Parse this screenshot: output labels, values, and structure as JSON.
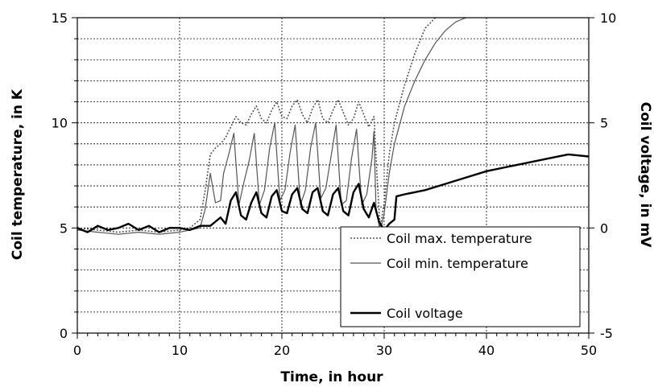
{
  "chart_data": {
    "type": "line",
    "title": "",
    "xlabel": "Time, in hour",
    "ylabel": "Coil temperature, in K",
    "y2label": "Coil voltage, in mV",
    "xlim": [
      0,
      50
    ],
    "ylim": [
      0,
      15
    ],
    "y2lim": [
      -5,
      10
    ],
    "x_ticks": [
      0,
      10,
      20,
      30,
      40,
      50
    ],
    "y_ticks": [
      0,
      5,
      10,
      15
    ],
    "y2_ticks": [
      -5,
      0,
      5,
      10
    ],
    "x_minor_step": 1,
    "y_minor_step": 1,
    "grid": true,
    "legend_position": "bottom-right",
    "series": [
      {
        "name": "Coil max. temperature",
        "axis": "left",
        "style": "dotted",
        "x": [
          0,
          2,
          4,
          6,
          8,
          10,
          11,
          12,
          12.5,
          13,
          13.5,
          14,
          14.5,
          15,
          15.5,
          16,
          16.5,
          17,
          17.5,
          18,
          18.5,
          19,
          19.5,
          20,
          20.5,
          21,
          21.5,
          22,
          22.5,
          23,
          23.5,
          24,
          24.5,
          25,
          25.5,
          26,
          26.5,
          27,
          27.5,
          28,
          28.5,
          29,
          29.3,
          29.6,
          30,
          30.5,
          31,
          32,
          33,
          34,
          35
        ],
        "values": [
          5.0,
          4.9,
          4.8,
          4.9,
          4.8,
          4.9,
          5.0,
          5.4,
          6.8,
          8.5,
          8.8,
          9.0,
          9.3,
          9.8,
          10.3,
          10.0,
          9.9,
          10.4,
          10.8,
          10.2,
          10.0,
          10.6,
          11.0,
          10.3,
          10.2,
          10.8,
          11.1,
          10.4,
          10.0,
          10.7,
          11.1,
          10.2,
          10.0,
          10.6,
          11.1,
          10.5,
          9.9,
          10.2,
          11.0,
          10.4,
          9.8,
          10.3,
          7.5,
          5.0,
          6.2,
          8.5,
          10.0,
          11.8,
          13.3,
          14.5,
          15.0
        ]
      },
      {
        "name": "Coil min. temperature",
        "axis": "left",
        "style": "thin",
        "x": [
          0,
          2,
          4,
          6,
          8,
          10,
          11,
          12,
          12.5,
          13,
          13.5,
          14,
          14.3,
          14.8,
          15.3,
          15.8,
          16.3,
          16.8,
          17.3,
          17.8,
          18.3,
          18.8,
          19.3,
          19.8,
          20.3,
          20.8,
          21.3,
          21.8,
          22.3,
          22.8,
          23.3,
          23.8,
          24.3,
          24.8,
          25.3,
          25.8,
          26.3,
          26.8,
          27.3,
          27.8,
          28.3,
          28.8,
          29.0,
          29.2,
          29.6,
          30,
          30.5,
          31,
          32,
          33,
          34,
          35,
          36,
          37,
          38
        ],
        "values": [
          4.9,
          4.8,
          4.7,
          4.8,
          4.7,
          4.8,
          4.9,
          5.0,
          5.9,
          7.6,
          6.2,
          6.3,
          7.6,
          8.5,
          9.5,
          6.1,
          7.2,
          8.2,
          9.5,
          6.1,
          6.8,
          8.8,
          10.0,
          6.3,
          6.8,
          8.6,
          9.9,
          6.1,
          6.8,
          8.8,
          10.0,
          6.4,
          6.9,
          8.4,
          9.9,
          6.1,
          6.3,
          8.3,
          9.7,
          6.1,
          6.6,
          8.3,
          9.6,
          6.0,
          4.8,
          5.7,
          7.6,
          9.0,
          10.8,
          12.0,
          13.0,
          13.8,
          14.4,
          14.8,
          15.0
        ]
      },
      {
        "name": "Coil voltage",
        "axis": "right",
        "style": "thick",
        "x": [
          0,
          1,
          2,
          3,
          4,
          5,
          6,
          7,
          8,
          9,
          10,
          11,
          12,
          13,
          13.5,
          14,
          14.5,
          15,
          15.5,
          16,
          16.5,
          17,
          17.5,
          18,
          18.5,
          19,
          19.5,
          20,
          20.5,
          21,
          21.5,
          22,
          22.5,
          23,
          23.5,
          24,
          24.5,
          25,
          25.5,
          26,
          26.5,
          27,
          27.5,
          28,
          28.5,
          29,
          29.5,
          30,
          30.5,
          31,
          31.2,
          32,
          34,
          36,
          38,
          40,
          42,
          44,
          46,
          48,
          50
        ],
        "values": [
          0.0,
          -0.2,
          0.1,
          -0.1,
          0.0,
          0.2,
          -0.1,
          0.1,
          -0.2,
          0.0,
          0.0,
          -0.1,
          0.1,
          0.1,
          0.3,
          0.5,
          0.2,
          1.3,
          1.7,
          0.6,
          0.4,
          1.2,
          1.7,
          0.7,
          0.5,
          1.5,
          1.8,
          0.8,
          0.7,
          1.6,
          1.9,
          0.9,
          0.7,
          1.7,
          1.9,
          0.8,
          0.6,
          1.6,
          1.9,
          0.8,
          0.6,
          1.7,
          2.1,
          0.9,
          0.5,
          1.2,
          0.3,
          -0.1,
          0.2,
          0.4,
          1.5,
          1.6,
          1.8,
          2.1,
          2.4,
          2.7,
          2.9,
          3.1,
          3.3,
          3.5,
          3.4
        ]
      }
    ]
  }
}
